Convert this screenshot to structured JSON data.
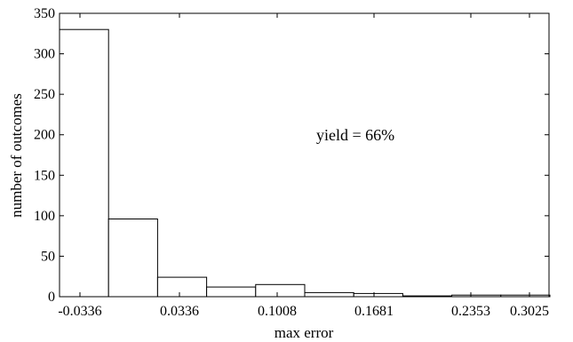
{
  "chart_data": {
    "type": "bar",
    "title": "",
    "xlabel": "max error",
    "ylabel": "number of outcomes",
    "x_tick_labels": [
      "-0.0336",
      "0.0336",
      "0.1008",
      "0.1681",
      "0.2353",
      "0.3025"
    ],
    "y_ticks": [
      0,
      50,
      100,
      150,
      200,
      250,
      300,
      350
    ],
    "ylim": [
      0,
      350
    ],
    "bins": 10,
    "values": [
      330,
      96,
      24,
      12,
      15,
      5,
      4,
      1,
      2,
      2
    ],
    "grid": false,
    "legend": "none",
    "bar_fill": "#ffffff",
    "bar_stroke": "#000000",
    "annotation": "yield = 66%"
  }
}
